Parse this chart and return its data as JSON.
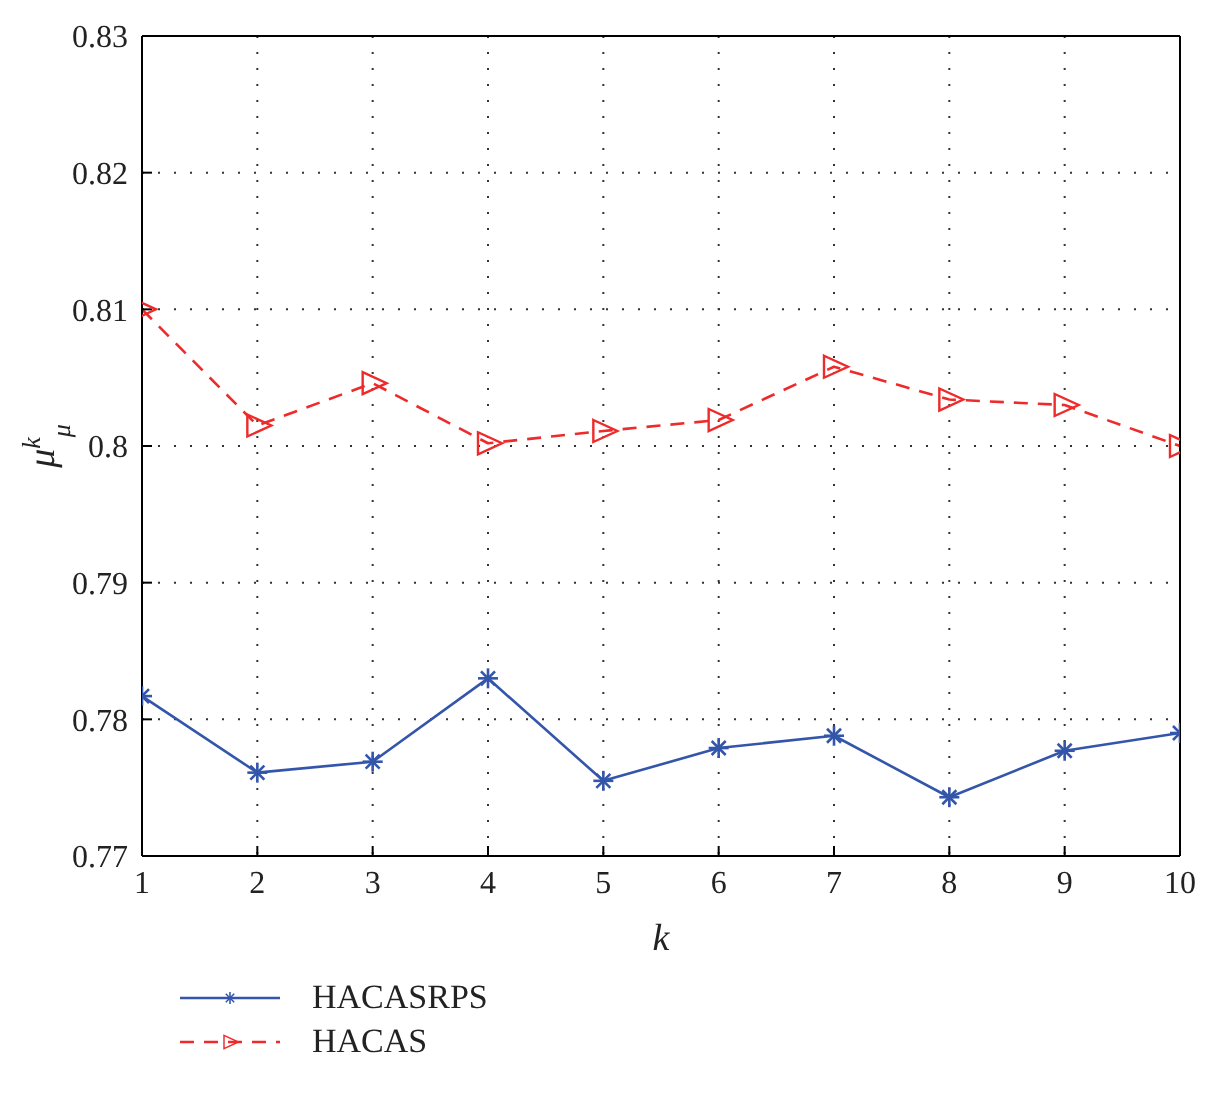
{
  "chart_data": {
    "type": "line",
    "xlabel": "k",
    "ylabel": "μ$^{k}$$_{μ}$",
    "x": [
      1,
      2,
      3,
      4,
      5,
      6,
      7,
      8,
      9,
      10
    ],
    "xlim": [
      1,
      10
    ],
    "xticks": [
      1,
      2,
      3,
      4,
      5,
      6,
      7,
      8,
      9,
      10
    ],
    "ylim": [
      0.77,
      0.83
    ],
    "yticks": [
      0.77,
      0.78,
      0.79,
      0.8,
      0.81,
      0.82,
      0.83
    ],
    "grid": true,
    "legend": "bottom left",
    "series": [
      {
        "name": "HACASRPS",
        "color": "#3355aa",
        "marker": "cross",
        "line_style": "solid",
        "values": [
          0.7817,
          0.7761,
          0.7769,
          0.783,
          0.7755,
          0.7779,
          0.7788,
          0.7743,
          0.7777,
          0.779
        ]
      },
      {
        "name": "HACAS",
        "color": "#ee2a2a",
        "marker": "triangle",
        "line_style": "dashed",
        "values": [
          0.81,
          0.8015,
          0.8046,
          0.8002,
          0.8011,
          0.8019,
          0.8058,
          0.8034,
          0.803,
          0.8
        ]
      }
    ]
  }
}
